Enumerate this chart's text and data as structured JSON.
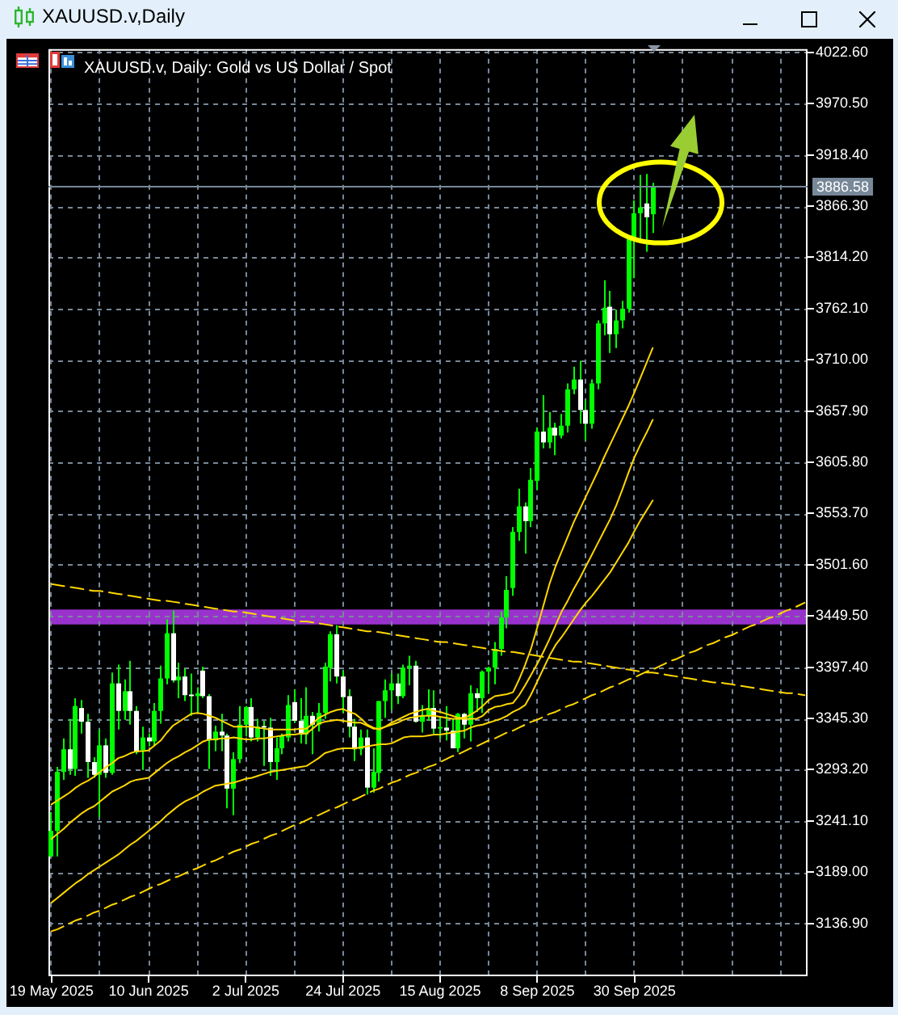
{
  "chart_data": {
    "type": "candlestick",
    "title": "XAUUSD.v,Daily",
    "subtitle": "XAUUSD.v, Daily: Gold vs US Dollar / Spot",
    "categories": [
      "19 May 2025",
      null,
      null,
      null,
      null,
      null,
      null,
      null,
      null,
      null,
      null,
      null,
      null,
      null,
      null,
      null,
      "10 Jun 2025",
      null,
      null,
      null,
      null,
      null,
      null,
      null,
      null,
      null,
      null,
      null,
      null,
      null,
      null,
      null,
      "2 Jul 2025",
      null,
      null,
      null,
      null,
      null,
      null,
      null,
      null,
      null,
      null,
      null,
      null,
      null,
      null,
      null,
      "24 Jul 2025",
      null,
      null,
      null,
      null,
      null,
      null,
      null,
      null,
      null,
      null,
      null,
      null,
      null,
      null,
      null,
      "15 Aug 2025",
      null,
      null,
      null,
      null,
      null,
      null,
      null,
      null,
      null,
      null,
      null,
      null,
      null,
      null,
      null,
      "8 Sep 2025",
      null,
      null,
      null,
      null,
      null,
      null,
      null,
      null,
      null,
      null,
      null,
      null,
      null,
      null,
      null,
      "30 Sep 2025",
      null,
      null,
      null,
      null,
      null,
      null,
      null,
      null,
      null,
      null,
      null,
      null,
      null,
      null,
      null,
      null,
      null,
      null,
      null,
      null,
      null,
      null,
      null,
      null,
      null,
      null,
      null,
      null
    ],
    "color": "#00ff00",
    "colors": [
      "#00ff00",
      "#00ff00",
      "#00ff00",
      "#ffffff",
      "#00ff00",
      "#ffffff",
      "#ffffff",
      "#ffffff",
      "#00ff00",
      "#ffffff",
      "#00ff00",
      "#ffffff",
      "#00ff00",
      "#ffffff",
      "#ffffff",
      "#00ff00",
      "#ffffff",
      "#00ff00",
      "#00ff00",
      "#00ff00",
      "#ffffff",
      "#00ff00",
      "#ffffff",
      "#ffffff",
      "#00ff00",
      "#ffffff",
      "#ffffff",
      "#00ff00",
      "#ffffff",
      "#ffffff",
      "#00ff00",
      "#00ff00",
      "#00ff00",
      "#ffffff",
      "#00ff00",
      "#ffffff",
      "#ffffff",
      "#00ff00",
      "#00ff00",
      "#00ff00",
      "#ffffff",
      "#ffffff",
      "#00ff00",
      "#ffffff",
      "#00ff00",
      "#00ff00",
      "#00ff00",
      "#ffffff",
      "#ffffff",
      "#ffffff",
      "#ffffff",
      "#00ff00",
      "#ffffff",
      "#00ff00",
      "#00ff00",
      "#00ff00",
      "#00ff00",
      "#ffffff",
      "#00ff00",
      "#00ff00",
      "#ffffff",
      "#00ff00",
      "#00ff00",
      "#ffffff",
      "#00ff00",
      "#ffffff",
      "#ffffff",
      "#00ff00",
      "#ffffff",
      "#00ff00",
      "#ffffff",
      "#00ff00",
      "#00ff00",
      "#00ff00",
      "#00ff00",
      "#00ff00",
      "#00ff00",
      "#00ff00",
      "#ffffff",
      "#00ff00",
      "#00ff00",
      "#ffffff",
      "#00ff00",
      "#ffffff",
      "#00ff00",
      "#00ff00",
      "#00ff00",
      "#ffffff",
      "#ffffff",
      "#00ff00",
      "#00ff00",
      "#00ff00",
      "#ffffff",
      "#00ff00",
      "#00ff00",
      "#00ff00",
      "#00ff00",
      "#00ff00",
      "#ffffff",
      "#00ff00",
      null,
      null,
      null,
      null,
      null,
      null,
      null,
      null,
      null,
      null,
      null,
      null,
      null,
      null,
      null,
      null,
      null,
      null,
      null,
      null,
      null,
      null,
      null,
      null,
      null
    ],
    "ohlc": [
      [
        3205,
        3250,
        3205,
        3231
      ],
      [
        3231,
        3296,
        3205,
        3291
      ],
      [
        3291,
        3325,
        3283,
        3314
      ],
      [
        3314,
        3345,
        3288,
        3294
      ],
      [
        3294,
        3366,
        3287,
        3358
      ],
      [
        3356,
        3364,
        3330,
        3342
      ],
      [
        3342,
        3350,
        3285,
        3301
      ],
      [
        3301,
        3306,
        3285,
        3288
      ],
      [
        3288,
        3334,
        3245,
        3318
      ],
      [
        3318,
        3325,
        3285,
        3290
      ],
      [
        3290,
        3392,
        3288,
        3381
      ],
      [
        3381,
        3400,
        3334,
        3353
      ],
      [
        3353,
        3385,
        3344,
        3373
      ],
      [
        3373,
        3404,
        3339,
        3353
      ],
      [
        3353,
        3358,
        3309,
        3311
      ],
      [
        3313,
        3337,
        3293,
        3326
      ],
      [
        3326,
        3330,
        3317,
        3322
      ],
      [
        3322,
        3361,
        3317,
        3353
      ],
      [
        3353,
        3399,
        3340,
        3386
      ],
      [
        3386,
        3446,
        3380,
        3432
      ],
      [
        3432,
        3455,
        3382,
        3384
      ],
      [
        3384,
        3402,
        3366,
        3388
      ],
      [
        3388,
        3396,
        3363,
        3369
      ],
      [
        3369,
        3391,
        3348,
        3368
      ],
      [
        3368,
        3377,
        3350,
        3371
      ],
      [
        3394,
        3398,
        3366,
        3368
      ],
      [
        3368,
        3370,
        3294,
        3323
      ],
      [
        3323,
        3338,
        3312,
        3332
      ],
      [
        3332,
        3350,
        3312,
        3328
      ],
      [
        3328,
        3330,
        3254,
        3274
      ],
      [
        3274,
        3311,
        3247,
        3304
      ],
      [
        3304,
        3358,
        3300,
        3339
      ],
      [
        3339,
        3358,
        3327,
        3357
      ],
      [
        3357,
        3366,
        3322,
        3326
      ],
      [
        3326,
        3345,
        3322,
        3337
      ],
      [
        3337,
        3343,
        3297,
        3336
      ],
      [
        3336,
        3346,
        3287,
        3301
      ],
      [
        3301,
        3326,
        3283,
        3315
      ],
      [
        3315,
        3330,
        3309,
        3328
      ],
      [
        3326,
        3369,
        3322,
        3359
      ],
      [
        3362,
        3375,
        3341,
        3343
      ],
      [
        3343,
        3366,
        3320,
        3329
      ],
      [
        3329,
        3377,
        3319,
        3348
      ],
      [
        3348,
        3352,
        3309,
        3339
      ],
      [
        3339,
        3361,
        3332,
        3351
      ],
      [
        3351,
        3402,
        3345,
        3398
      ],
      [
        3397,
        3434,
        3383,
        3431
      ],
      [
        3431,
        3440,
        3381,
        3388
      ],
      [
        3388,
        3394,
        3351,
        3367
      ],
      [
        3368,
        3375,
        3326,
        3337
      ],
      [
        3337,
        3345,
        3302,
        3314
      ],
      [
        3314,
        3334,
        3308,
        3326
      ],
      [
        3326,
        3334,
        3268,
        3275
      ],
      [
        3275,
        3315,
        3270,
        3291
      ],
      [
        3290,
        3363,
        3281,
        3363
      ],
      [
        3363,
        3385,
        3346,
        3374
      ],
      [
        3374,
        3391,
        3354,
        3381
      ],
      [
        3381,
        3391,
        3360,
        3368
      ],
      [
        3368,
        3400,
        3366,
        3397
      ],
      [
        3397,
        3409,
        3379,
        3399
      ],
      [
        3399,
        3404,
        3341,
        3342
      ],
      [
        3342,
        3359,
        3331,
        3348
      ],
      [
        3348,
        3375,
        3343,
        3356
      ],
      [
        3356,
        3374,
        3330,
        3335
      ],
      [
        3335,
        3347,
        3325,
        3336
      ],
      [
        3336,
        3358,
        3323,
        3333
      ],
      [
        3333,
        3345,
        3315,
        3315
      ],
      [
        3315,
        3351,
        3311,
        3350
      ],
      [
        3350,
        3351,
        3325,
        3339
      ],
      [
        3339,
        3379,
        3322,
        3371
      ],
      [
        3371,
        3376,
        3352,
        3366
      ],
      [
        3366,
        3394,
        3351,
        3393
      ],
      [
        3393,
        3398,
        3371,
        3397
      ],
      [
        3397,
        3423,
        3380,
        3416
      ],
      [
        3416,
        3454,
        3409,
        3448
      ],
      [
        3448,
        3490,
        3437,
        3476
      ],
      [
        3478,
        3540,
        3470,
        3535
      ],
      [
        3535,
        3579,
        3526,
        3561
      ],
      [
        3561,
        3565,
        3513,
        3546
      ],
      [
        3546,
        3600,
        3540,
        3588
      ],
      [
        3587,
        3641,
        3578,
        3637
      ],
      [
        3637,
        3674,
        3620,
        3626
      ],
      [
        3626,
        3657,
        3620,
        3641
      ],
      [
        3641,
        3646,
        3613,
        3633
      ],
      [
        3633,
        3655,
        3630,
        3643
      ],
      [
        3643,
        3686,
        3636,
        3680
      ],
      [
        3680,
        3703,
        3675,
        3690
      ],
      [
        3690,
        3709,
        3645,
        3659
      ],
      [
        3659,
        3669,
        3628,
        3645
      ],
      [
        3645,
        3690,
        3640,
        3686
      ],
      [
        3686,
        3750,
        3680,
        3747
      ],
      [
        3747,
        3791,
        3735,
        3763
      ],
      [
        3764,
        3780,
        3717,
        3736
      ],
      [
        3736,
        3761,
        3722,
        3750
      ],
      [
        3750,
        3770,
        3742,
        3762
      ],
      [
        3762,
        3835,
        3758,
        3834
      ],
      [
        3834,
        3872,
        3793,
        3859
      ],
      [
        3859,
        3898,
        3831,
        3865
      ],
      [
        3869,
        3899,
        3820,
        3855
      ],
      [
        3858,
        3890,
        3839,
        3886.58
      ],
      null,
      null,
      null,
      null,
      null,
      null,
      null,
      null,
      null,
      null,
      null,
      null,
      null,
      null,
      null,
      null,
      null,
      null,
      null,
      null,
      null,
      null,
      null,
      null,
      null
    ],
    "series": [
      {
        "type": "line",
        "color": "#ffd700",
        "values": [
          3258,
          3262,
          3266,
          3270,
          3275,
          3279,
          3282,
          3286,
          3291,
          3296,
          3300,
          3305,
          3307,
          3310,
          3312,
          3312,
          3313,
          3318,
          3323,
          3331,
          3338,
          3342,
          3346,
          3350,
          3351,
          3350,
          3348,
          3346,
          3343,
          3340,
          3337,
          3337,
          3337,
          3337,
          3336,
          3335,
          3334,
          3334,
          3334,
          3334,
          3334,
          3335,
          3335,
          3340,
          3346,
          3349,
          3352,
          3354,
          3355,
          3352,
          3350,
          3345,
          3339,
          3336,
          3334,
          3337,
          3341,
          3344,
          3347,
          3350,
          3352,
          3354,
          3355,
          3353,
          3352,
          3350,
          3348,
          3346,
          3346,
          3349,
          3353,
          3358,
          3364,
          3368,
          3369,
          3370,
          3372,
          3385,
          3400,
          3417,
          3438,
          3460,
          3482,
          3500,
          3515,
          3530,
          3545,
          3558,
          3571,
          3584,
          3597,
          3611,
          3624,
          3637,
          3650,
          3663,
          3677,
          3692,
          3707,
          3722,
          null,
          null,
          null,
          null,
          null,
          null,
          null,
          null,
          null,
          null,
          null,
          null,
          null,
          null,
          null,
          null,
          null,
          null,
          null,
          null,
          null,
          null,
          null,
          null,
          null
        ]
      },
      {
        "type": "line",
        "color": "#ffd700",
        "values": [
          3223,
          3228,
          3233,
          3239,
          3244,
          3249,
          3253,
          3256,
          3261,
          3266,
          3271,
          3274,
          3277,
          3281,
          3283,
          3284,
          3285,
          3290,
          3295,
          3300,
          3304,
          3307,
          3311,
          3314,
          3318,
          3322,
          3324,
          3324,
          3325,
          3325,
          3326,
          3325,
          3324,
          3324,
          3325,
          3325,
          3326,
          3327,
          3328,
          3329,
          3329,
          3330,
          3330,
          3335,
          3340,
          3342,
          3343,
          3344,
          3343,
          3342,
          3341,
          3341,
          3338,
          3335,
          3335,
          3337,
          3339,
          3341,
          3344,
          3346,
          3347,
          3348,
          3348,
          3348,
          3347,
          3346,
          3345,
          3345,
          3345,
          3345,
          3345,
          3348,
          3354,
          3357,
          3358,
          3360,
          3361,
          3369,
          3379,
          3390,
          3401,
          3413,
          3426,
          3440,
          3454,
          3465,
          3477,
          3488,
          3500,
          3512,
          3524,
          3536,
          3548,
          3562,
          3578,
          3595,
          3611,
          3624,
          3636,
          3649,
          null,
          null,
          null,
          null,
          null,
          null,
          null,
          null,
          null,
          null,
          null,
          null,
          null,
          null,
          null,
          null,
          null,
          null,
          null,
          null,
          null,
          null,
          null,
          null,
          null
        ]
      },
      {
        "type": "line",
        "color": "#ffd700",
        "values": [
          3158,
          3163,
          3168,
          3173,
          3178,
          3182,
          3187,
          3191,
          3195,
          3199,
          3203,
          3207,
          3212,
          3217,
          3221,
          3226,
          3231,
          3236,
          3241,
          3247,
          3252,
          3257,
          3261,
          3264,
          3267,
          3271,
          3274,
          3277,
          3278,
          3279,
          3280,
          3282,
          3284,
          3285,
          3287,
          3289,
          3291,
          3292,
          3293,
          3294,
          3295,
          3296,
          3297,
          3301,
          3305,
          3310,
          3312,
          3314,
          3315,
          3315,
          3315,
          3316,
          3317,
          3318,
          3319,
          3319,
          3320,
          3323,
          3326,
          3327,
          3327,
          3327,
          3328,
          3329,
          3329,
          3330,
          3331,
          3332,
          3333,
          3336,
          3338,
          3339,
          3341,
          3343,
          3345,
          3348,
          3352,
          3355,
          3359,
          3370,
          3383,
          3396,
          3409,
          3420,
          3428,
          3437,
          3446,
          3455,
          3463,
          3470,
          3478,
          3486,
          3494,
          3504,
          3514,
          3524,
          3536,
          3547,
          3557,
          3567,
          null,
          null,
          null,
          null,
          null,
          null,
          null,
          null,
          null,
          null,
          null,
          null,
          null,
          null,
          null,
          null,
          null,
          null,
          null,
          null,
          null,
          null,
          null,
          null,
          null
        ]
      },
      {
        "type": "line",
        "color": "#ffd700",
        "line_style": "dashed",
        "values": [
          3482,
          3481,
          3480,
          3479,
          3478,
          3477,
          3476,
          3475,
          3475,
          3474,
          3473,
          3472,
          3471,
          3470,
          3469,
          3468,
          3467,
          3466,
          3465,
          3465,
          3464,
          3463,
          3462,
          3461,
          3460,
          3459,
          3458,
          3457,
          3456,
          3455,
          3454,
          3454,
          3453,
          3452,
          3451,
          3450,
          3449,
          3448,
          3447,
          3446,
          3445,
          3444,
          3444,
          3443,
          3442,
          3441,
          3440,
          3439,
          3438,
          3437,
          3436,
          3435,
          3434,
          3434,
          3433,
          3432,
          3431,
          3430,
          3429,
          3428,
          3427,
          3426,
          3425,
          3424,
          3423,
          3423,
          3422,
          3421,
          3420,
          3419,
          3418,
          3417,
          3416,
          3415,
          3414,
          3413,
          3413,
          3412,
          3411,
          3410,
          3409,
          3408,
          3407,
          3406,
          3405,
          3404,
          3403,
          3403,
          3402,
          3401,
          3400,
          3399,
          3398,
          3397,
          3396,
          3395,
          3394,
          3393,
          3392,
          3392,
          3391,
          3390,
          3389,
          3388,
          3387,
          3386,
          3385,
          3384,
          3383,
          3382,
          3382,
          3381,
          3380,
          3379,
          3378,
          3377,
          3376,
          3375,
          3374,
          3373,
          3372,
          3371,
          3371,
          3370,
          3369
        ]
      },
      {
        "type": "line",
        "color": "#ffd700",
        "line_style": "dashed",
        "values": [
          3129,
          3131,
          3134,
          3137,
          3140,
          3142,
          3145,
          3148,
          3150,
          3153,
          3156,
          3158,
          3161,
          3164,
          3166,
          3169,
          3172,
          3175,
          3177,
          3180,
          3183,
          3185,
          3188,
          3191,
          3193,
          3196,
          3199,
          3201,
          3204,
          3207,
          3210,
          3212,
          3215,
          3218,
          3220,
          3223,
          3226,
          3228,
          3231,
          3234,
          3237,
          3239,
          3242,
          3245,
          3247,
          3250,
          3253,
          3255,
          3258,
          3261,
          3263,
          3266,
          3269,
          3272,
          3274,
          3277,
          3280,
          3282,
          3285,
          3288,
          3290,
          3293,
          3296,
          3298,
          3301,
          3304,
          3307,
          3309,
          3312,
          3315,
          3317,
          3320,
          3323,
          3325,
          3328,
          3331,
          3333,
          3336,
          3339,
          3342,
          3344,
          3347,
          3350,
          3352,
          3355,
          3358,
          3360,
          3363,
          3366,
          3369,
          3371,
          3374,
          3377,
          3379,
          3382,
          3385,
          3387,
          3390,
          3393,
          3395,
          3398,
          3401,
          3404,
          3406,
          3409,
          3412,
          3414,
          3417,
          3420,
          3422,
          3425,
          3428,
          3430,
          3433,
          3436,
          3439,
          3441,
          3444,
          3447,
          3449,
          3452,
          3455,
          3457,
          3460,
          3463
        ]
      }
    ],
    "bands": [
      {
        "axis": "y",
        "from": 3441,
        "to": 3456,
        "color": "#9932cc"
      }
    ],
    "ylim": [
      3084.9,
      4025.9
    ],
    "yticks": [
      {
        "value": 3136.9,
        "label": "3136.90"
      },
      {
        "value": 3189,
        "label": "3189.00"
      },
      {
        "value": 3241.1,
        "label": "3241.10"
      },
      {
        "value": 3293.2,
        "label": "3293.20"
      },
      {
        "value": 3345.3,
        "label": "3345.30"
      },
      {
        "value": 3397.4,
        "label": "3397.40"
      },
      {
        "value": 3449.5,
        "label": "3449.50"
      },
      {
        "value": 3501.6,
        "label": "3501.60"
      },
      {
        "value": 3553.7,
        "label": "3553.70"
      },
      {
        "value": 3605.8,
        "label": "3605.80"
      },
      {
        "value": 3657.9,
        "label": "3657.90"
      },
      {
        "value": 3710,
        "label": "3710.00"
      },
      {
        "value": 3762.1,
        "label": "3762.10"
      },
      {
        "value": 3814.2,
        "label": "3814.20"
      },
      {
        "value": 3866.3,
        "label": "3866.30"
      },
      {
        "value": 3918.4,
        "label": "3918.40"
      },
      {
        "value": 3970.5,
        "label": "3970.50"
      },
      {
        "value": 4022.6,
        "label": "4022.60"
      }
    ],
    "grid": true,
    "ref_lines": [
      {
        "axis": "y",
        "value": 3886.58,
        "label": "3886.58",
        "color": "#778899"
      }
    ]
  }
}
